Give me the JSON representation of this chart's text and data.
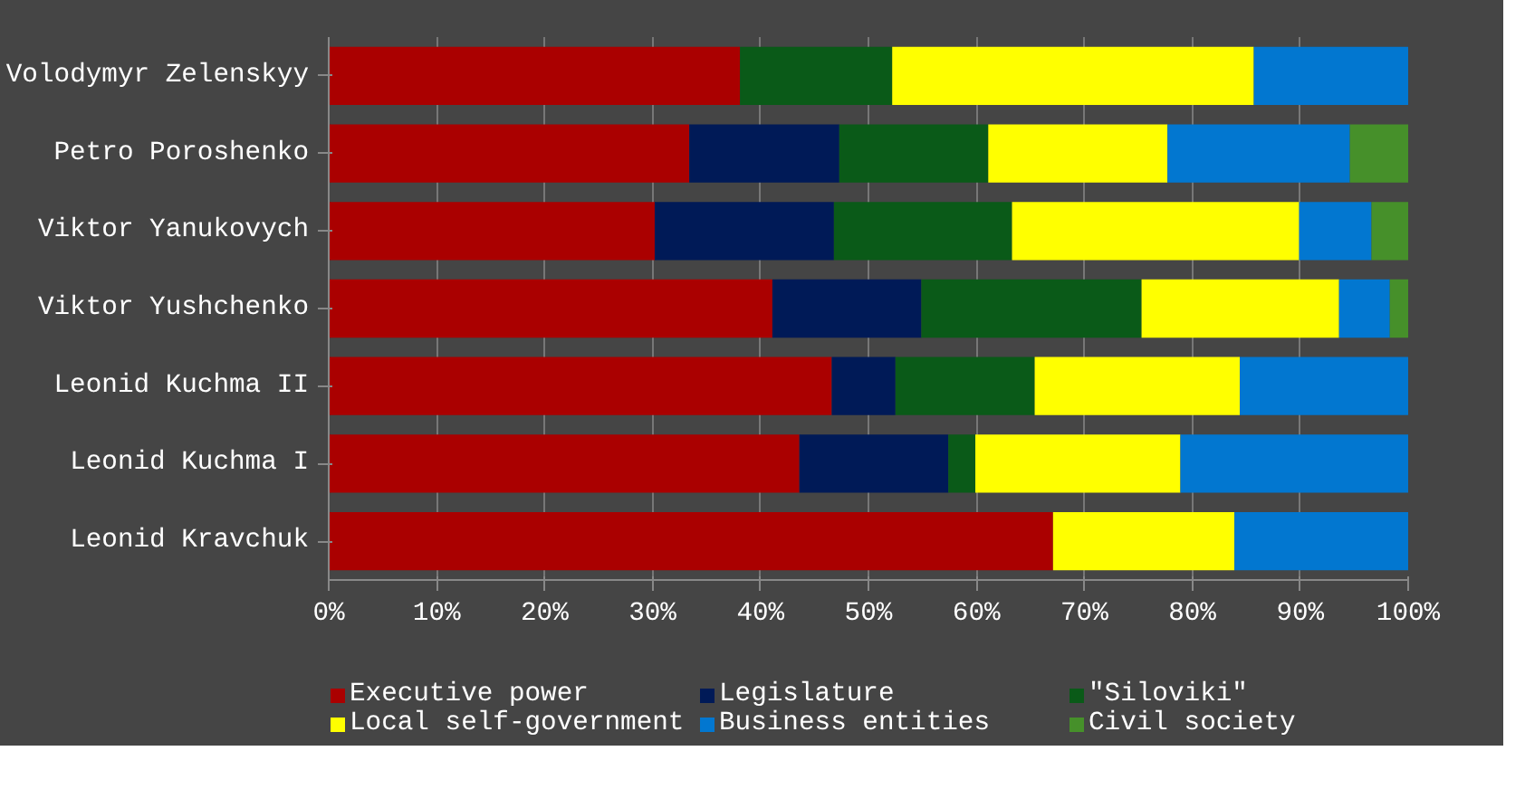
{
  "chart_data": {
    "type": "bar",
    "orientation": "horizontal",
    "stacked": true,
    "categories": [
      "Volodymyr Zelenskyy",
      "Petro Poroshenko",
      "Viktor Yanukovych",
      "Viktor Yushchenko",
      "Leonid Kuchma II",
      "Leonid Kuchma I",
      "Leonid Kravchuk"
    ],
    "series": [
      {
        "name": "Executive power",
        "color": "#aa0000",
        "values": [
          38.1,
          33.4,
          30.2,
          41.1,
          46.6,
          43.6,
          67.1
        ]
      },
      {
        "name": "Legislature",
        "color": "#001a57",
        "values": [
          0,
          13.9,
          16.6,
          13.8,
          5.9,
          13.8,
          0
        ]
      },
      {
        "name": "\"Siloviki\"",
        "color": "#0a5a18",
        "values": [
          14.1,
          13.8,
          16.5,
          20.4,
          12.9,
          2.5,
          0
        ]
      },
      {
        "name": "Local self-government",
        "color": "#ffff00",
        "values": [
          33.5,
          16.6,
          26.6,
          18.3,
          19.0,
          19.0,
          16.8
        ]
      },
      {
        "name": "Business entities",
        "color": "#0277d0",
        "values": [
          14.3,
          16.9,
          6.7,
          4.7,
          15.6,
          21.1,
          16.1
        ]
      },
      {
        "name": "Civil society",
        "color": "#46902a",
        "values": [
          0,
          5.4,
          3.4,
          1.7,
          0,
          0,
          0
        ]
      }
    ],
    "xlim": [
      0,
      100
    ],
    "xticks": [
      {
        "value": 0,
        "label": "0%"
      },
      {
        "value": 10,
        "label": "10%"
      },
      {
        "value": 20,
        "label": "20%"
      },
      {
        "value": 30,
        "label": "30%"
      },
      {
        "value": 40,
        "label": "40%"
      },
      {
        "value": 50,
        "label": "50%"
      },
      {
        "value": 60,
        "label": "60%"
      },
      {
        "value": 70,
        "label": "70%"
      },
      {
        "value": 80,
        "label": "80%"
      },
      {
        "value": 90,
        "label": "90%"
      },
      {
        "value": 100,
        "label": "100%"
      }
    ],
    "grid": "x",
    "legend": "bottom"
  }
}
